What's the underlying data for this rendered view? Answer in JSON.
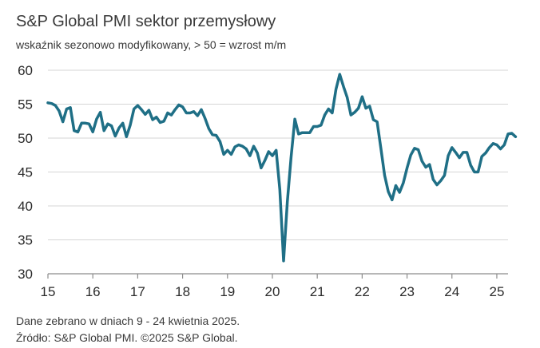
{
  "title": "S&P Global PMI sektor przemysłowy",
  "subtitle": "wskaźnik sezonowo modyfikowany, > 50 = wzrost m/m",
  "footer": {
    "line1": "Dane zebrano w dniach 9 - 24 kwietnia 2025.",
    "line2": "Źródło: S&P Global PMI. ©2025 S&P Global."
  },
  "colors": {
    "series": "#1f6f86",
    "grid": "#d6d6d6",
    "axis": "#8c8c8c"
  },
  "chart_data": {
    "type": "line",
    "title": "S&P Global PMI sektor przemysłowy",
    "subtitle": "wskaźnik sezonowo modyfikowany, > 50 = wzrost m/m",
    "xlabel": "",
    "ylabel": "",
    "ylim": [
      30,
      60
    ],
    "yticks": [
      30,
      35,
      40,
      45,
      50,
      55,
      60
    ],
    "xlim": [
      "2015-01",
      "2025-04"
    ],
    "xticks": [
      {
        "year": 2015,
        "label": "15"
      },
      {
        "year": 2016,
        "label": "16"
      },
      {
        "year": 2017,
        "label": "17"
      },
      {
        "year": 2018,
        "label": "18"
      },
      {
        "year": 2019,
        "label": "19"
      },
      {
        "year": 2020,
        "label": "20"
      },
      {
        "year": 2021,
        "label": "21"
      },
      {
        "year": 2022,
        "label": "22"
      },
      {
        "year": 2023,
        "label": "23"
      },
      {
        "year": 2024,
        "label": "24"
      },
      {
        "year": 2025,
        "label": "25"
      }
    ],
    "grid": true,
    "legend": "none",
    "series": [
      {
        "start": "2015-01",
        "frequency": "monthly",
        "values": [
          55.2,
          55.1,
          54.8,
          54.0,
          52.4,
          54.3,
          54.5,
          51.1,
          50.9,
          52.2,
          52.2,
          52.1,
          50.9,
          52.8,
          53.8,
          51.1,
          52.1,
          51.8,
          50.3,
          51.5,
          52.2,
          50.2,
          51.9,
          54.3,
          54.8,
          54.2,
          53.5,
          54.1,
          52.7,
          53.1,
          52.3,
          52.5,
          53.7,
          53.4,
          54.2,
          54.9,
          54.6,
          53.7,
          53.7,
          53.9,
          53.3,
          54.2,
          52.9,
          51.4,
          50.5,
          50.4,
          49.5,
          47.6,
          48.2,
          47.6,
          48.7,
          49.0,
          48.8,
          48.4,
          47.4,
          48.8,
          47.8,
          45.6,
          46.7,
          48.0,
          47.4,
          48.2,
          42.4,
          31.9,
          40.6,
          47.2,
          52.8,
          50.6,
          50.8,
          50.8,
          50.8,
          51.7,
          51.7,
          51.9,
          53.4,
          54.3,
          53.7,
          57.2,
          59.4,
          57.6,
          56.0,
          53.4,
          53.8,
          54.4,
          56.1,
          54.4,
          54.7,
          52.7,
          52.4,
          48.5,
          44.5,
          42.1,
          40.9,
          43.0,
          42.0,
          43.4,
          45.6,
          47.5,
          48.5,
          48.3,
          46.6,
          45.7,
          46.1,
          43.9,
          43.1,
          43.7,
          44.5,
          47.4,
          48.6,
          47.9,
          47.1,
          47.9,
          47.9,
          46.0,
          45.0,
          45.0,
          47.3,
          47.8,
          48.6,
          49.2,
          49.0,
          48.4,
          49.0,
          50.6,
          50.7,
          50.2
        ]
      }
    ]
  }
}
